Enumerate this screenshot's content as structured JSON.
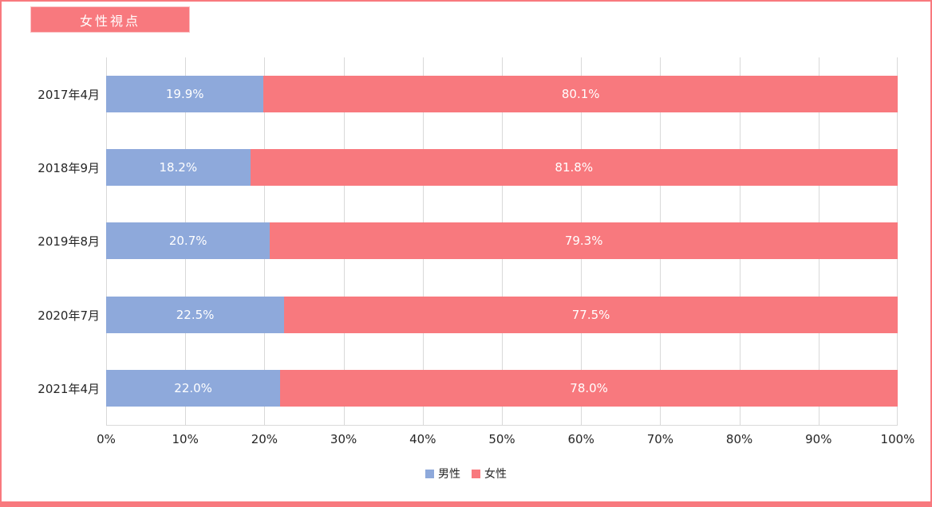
{
  "title_badge": "女性視点",
  "colors": {
    "male": "#8EA9DB",
    "female": "#F8797E",
    "badge_bg": "#F8797E",
    "border": "#F8797E",
    "grid": "#D9D9D9"
  },
  "chart_data": {
    "type": "bar",
    "orientation": "horizontal",
    "stacked": true,
    "stacked_total": 100,
    "title": "女性視点",
    "categories": [
      "2017年4月",
      "2018年9月",
      "2019年8月",
      "2020年7月",
      "2021年4月"
    ],
    "series": [
      {
        "name": "男性",
        "color": "#8EA9DB",
        "values": [
          19.9,
          18.2,
          20.7,
          22.5,
          22.0
        ],
        "labels": [
          "19.9%",
          "18.2%",
          "20.7%",
          "22.5%",
          "22.0%"
        ]
      },
      {
        "name": "女性",
        "color": "#F8797E",
        "values": [
          80.1,
          81.8,
          79.3,
          77.5,
          78.0
        ],
        "labels": [
          "80.1%",
          "81.8%",
          "79.3%",
          "77.5%",
          "78.0%"
        ]
      }
    ],
    "xlim": [
      0,
      100
    ],
    "x_ticks": [
      "0%",
      "10%",
      "20%",
      "30%",
      "40%",
      "50%",
      "60%",
      "70%",
      "80%",
      "90%",
      "100%"
    ],
    "grid": "vertical",
    "legend_position": "bottom"
  }
}
